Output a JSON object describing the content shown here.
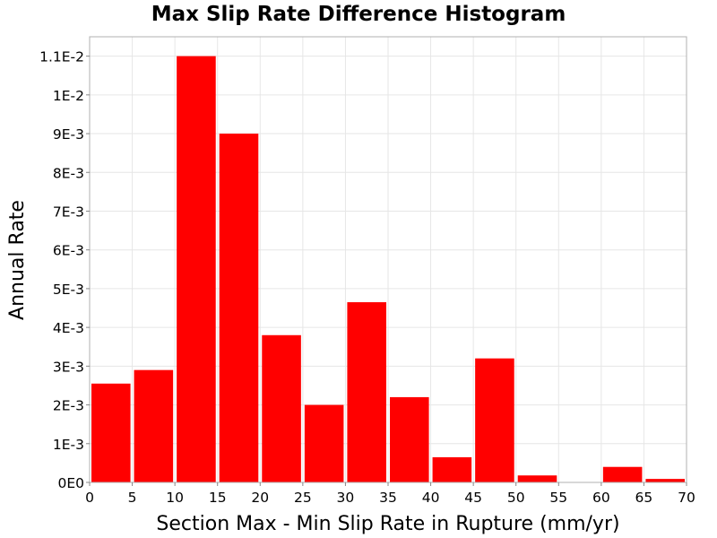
{
  "chart_data": {
    "type": "bar",
    "title": "Max Slip Rate Difference Histogram",
    "xlabel": "Section Max - Min Slip Rate in Rupture (mm/yr)",
    "ylabel": "Annual Rate",
    "bin_width": 5,
    "bins": [
      0,
      5,
      10,
      15,
      20,
      25,
      30,
      35,
      40,
      45,
      50,
      55,
      60,
      65
    ],
    "values": [
      0.00255,
      0.0029,
      0.011,
      0.009,
      0.0038,
      0.002,
      0.00465,
      0.0022,
      0.00065,
      0.0032,
      0.00018,
      0.0,
      0.0004,
      9e-05
    ],
    "xlim": [
      0,
      70
    ],
    "ylim": [
      0,
      0.0115
    ],
    "x_ticks": [
      0,
      5,
      10,
      15,
      20,
      25,
      30,
      35,
      40,
      45,
      50,
      55,
      60,
      65,
      70
    ],
    "x_tick_labels": [
      "0",
      "5",
      "10",
      "15",
      "20",
      "25",
      "30",
      "35",
      "40",
      "45",
      "50",
      "55",
      "60",
      "65",
      "70"
    ],
    "y_ticks": [
      0,
      0.001,
      0.002,
      0.003,
      0.004,
      0.005,
      0.006,
      0.007,
      0.008,
      0.009,
      0.01,
      0.011
    ],
    "y_tick_labels": [
      "0E0",
      "1E-3",
      "2E-3",
      "3E-3",
      "4E-3",
      "5E-3",
      "6E-3",
      "7E-3",
      "8E-3",
      "9E-3",
      "1E-2",
      "1.1E-2"
    ],
    "grid": true,
    "bar_color": "#ff0000"
  }
}
